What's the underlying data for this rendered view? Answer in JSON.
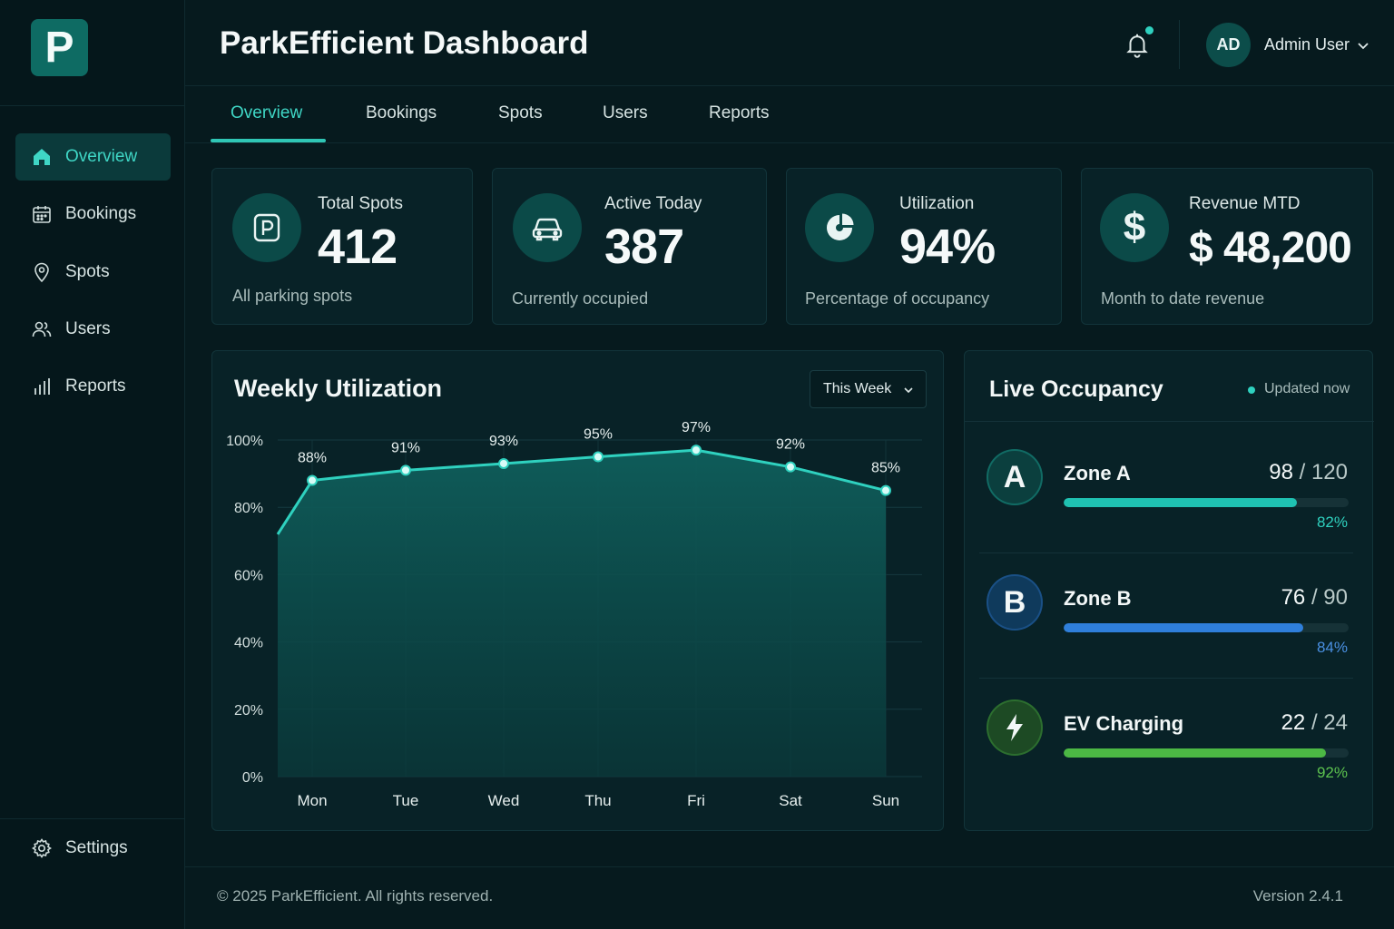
{
  "app": {
    "logo_letter": "P",
    "title": "ParkEfficient Dashboard"
  },
  "sidebar": {
    "items": [
      {
        "label": "Overview",
        "icon": "home-icon",
        "active": true
      },
      {
        "label": "Bookings",
        "icon": "calendar-icon"
      },
      {
        "label": "Spots",
        "icon": "map-pin-icon"
      },
      {
        "label": "Users",
        "icon": "users-icon"
      },
      {
        "label": "Reports",
        "icon": "bar-chart-icon"
      }
    ],
    "settings_label": "Settings"
  },
  "header": {
    "user_initials": "AD",
    "user_name": "Admin User",
    "notification_indicator": true
  },
  "tabs": [
    "Overview",
    "Bookings",
    "Spots",
    "Users",
    "Reports"
  ],
  "active_tab": "Overview",
  "stats": [
    {
      "label": "Total Spots",
      "value": "412",
      "sub": "All parking spots",
      "icon": "parking-icon"
    },
    {
      "label": "Active Today",
      "value": "387",
      "sub": "Currently occupied",
      "icon": "car-icon"
    },
    {
      "label": "Utilization",
      "value": "94%",
      "sub": "Percentage of occupancy",
      "icon": "pie-chart-icon"
    },
    {
      "label": "Revenue MTD",
      "value": "$ 48,200",
      "sub": "Month to date revenue",
      "icon": "dollar-icon"
    }
  ],
  "chart_card": {
    "title": "Weekly Utilization",
    "range_select": "This Week"
  },
  "chart_data": {
    "type": "area",
    "title": "Weekly Utilization",
    "categories": [
      "Mon",
      "Tue",
      "Wed",
      "Thu",
      "Fri",
      "Sat",
      "Sun"
    ],
    "values": [
      88,
      91,
      93,
      95,
      97,
      92,
      85
    ],
    "value_labels": [
      "88%",
      "91%",
      "93%",
      "95%",
      "97%",
      "92%",
      "85%"
    ],
    "y_ticks": [
      "0%",
      "20%",
      "40%",
      "60%",
      "80%",
      "100%"
    ],
    "ylim": [
      0,
      100
    ],
    "grid": true,
    "line_color": "#2fd1bf"
  },
  "occupancy": {
    "title": "Live Occupancy",
    "updated": "Updated now",
    "zones": [
      {
        "badge": "A",
        "name": "Zone A",
        "occupied": "98",
        "capacity": "120",
        "percent_label": "82%",
        "fill": 0.82,
        "color": "#1fc2b2",
        "badge_bg": "#0b3f3e",
        "pct_color": "#2fd1bf"
      },
      {
        "badge": "B",
        "name": "Zone B",
        "occupied": "76",
        "capacity": "90",
        "percent_label": "84%",
        "fill": 0.84,
        "color": "#2f7fdb",
        "badge_bg": "#0f3a5c",
        "pct_color": "#4a90e2"
      },
      {
        "badge": "⚡",
        "name": "EV Charging",
        "occupied": "22",
        "capacity": "24",
        "percent_label": "92%",
        "fill": 0.92,
        "color": "#4cb844",
        "badge_bg": "#1d4a24",
        "pct_color": "#5cc24f"
      }
    ]
  },
  "footer": {
    "copyright": "© 2025 ParkEfficient. All rights reserved.",
    "version": "Version 2.4.1"
  }
}
